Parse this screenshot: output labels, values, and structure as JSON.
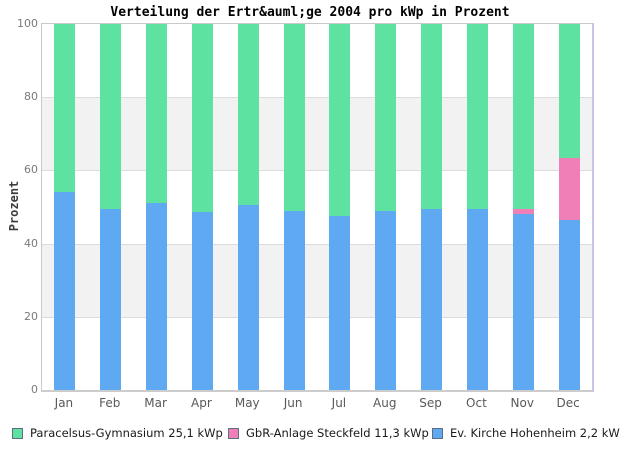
{
  "chart_data": {
    "type": "bar",
    "stacked": true,
    "title": "Verteilung der Ertr&auml;ge 2004 pro kWp in Prozent",
    "xlabel": "",
    "ylabel": "Prozent",
    "ylim": [
      0,
      100
    ],
    "yticks": [
      0,
      20,
      40,
      60,
      80,
      100
    ],
    "grid": "alternating-horizontal-bands",
    "band_colors": [
      "#ffffff",
      "#f2f2f2"
    ],
    "gridline_color": "#dcdcdc",
    "categories": [
      "Jan",
      "Feb",
      "Mar",
      "Apr",
      "May",
      "Jun",
      "Jul",
      "Aug",
      "Sep",
      "Oct",
      "Nov",
      "Dec"
    ],
    "series": [
      {
        "name": "Ev. Kirche Hohenheim 2,2 kWp",
        "color": "#5fa8f2",
        "values": [
          54,
          49.5,
          51,
          48.5,
          50.5,
          49,
          47.5,
          49,
          49.5,
          49.5,
          48,
          46.5
        ]
      },
      {
        "name": "GbR-Anlage Steckfeld 11,3 kWp",
        "color": "#f07fb8",
        "values": [
          0,
          0,
          0,
          0,
          0,
          0,
          0,
          0,
          0,
          0,
          1.5,
          17
        ]
      },
      {
        "name": "Paracelsus-Gymnasium 25,1 kWp",
        "color": "#5de2a2",
        "values": [
          46,
          50.5,
          49,
          51.5,
          49.5,
          51,
          52.5,
          51,
          50.5,
          50.5,
          50.5,
          36.5
        ]
      }
    ],
    "legend_position": "bottom",
    "legend": [
      {
        "label": "Paracelsus-Gymnasium 25,1 kWp",
        "color": "#5de2a2"
      },
      {
        "label": "GbR-Anlage Steckfeld 11,3 kWp",
        "color": "#f07fb8"
      },
      {
        "label": "Ev. Kirche Hohenheim 2,2 kWp",
        "color": "#5fa8f2"
      }
    ]
  }
}
